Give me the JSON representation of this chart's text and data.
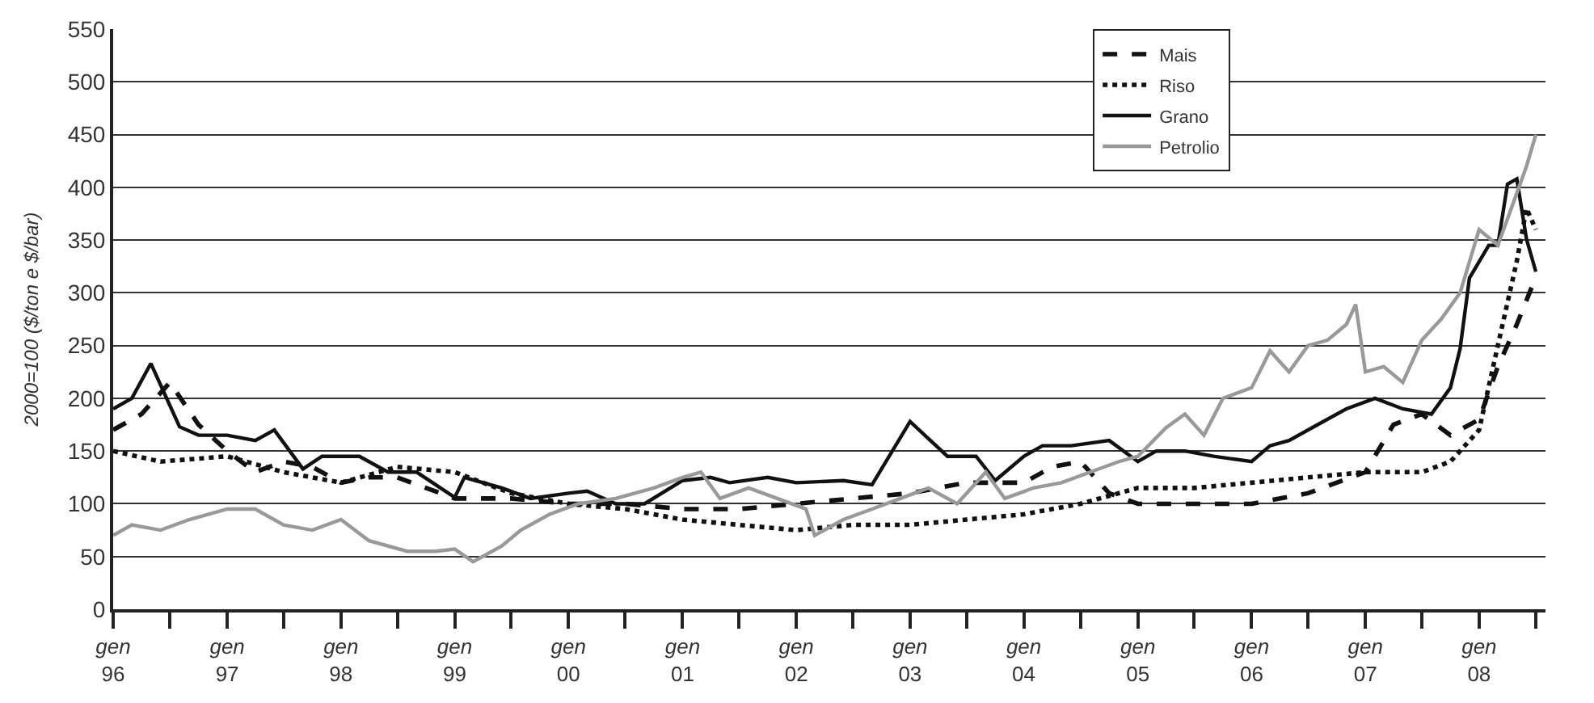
{
  "chart_data": {
    "type": "line",
    "ylabel": "2000=100 ($/ton e $/bar)",
    "xlim": [
      "1996-01",
      "2008-08"
    ],
    "ylim": [
      0,
      550
    ],
    "yticks": [
      0,
      50,
      100,
      150,
      200,
      250,
      300,
      350,
      400,
      450,
      500,
      550
    ],
    "xticks": [
      {
        "value": "1996-01",
        "label": "gen\n96"
      },
      {
        "value": "1996-07",
        "label": null
      },
      {
        "value": "1997-01",
        "label": "gen\n97"
      },
      {
        "value": "1997-07",
        "label": null
      },
      {
        "value": "1998-01",
        "label": "gen\n98"
      },
      {
        "value": "1998-07",
        "label": null
      },
      {
        "value": "1999-01",
        "label": "gen\n99"
      },
      {
        "value": "1999-07",
        "label": null
      },
      {
        "value": "2000-01",
        "label": "gen\n00"
      },
      {
        "value": "2000-07",
        "label": null
      },
      {
        "value": "2001-01",
        "label": "gen\n01"
      },
      {
        "value": "2001-07",
        "label": null
      },
      {
        "value": "2002-01",
        "label": "gen\n02"
      },
      {
        "value": "2002-07",
        "label": null
      },
      {
        "value": "2003-01",
        "label": "gen\n03"
      },
      {
        "value": "2003-07",
        "label": null
      },
      {
        "value": "2004-01",
        "label": "gen\n04"
      },
      {
        "value": "2004-07",
        "label": null
      },
      {
        "value": "2005-01",
        "label": "gen\n05"
      },
      {
        "value": "2005-07",
        "label": null
      },
      {
        "value": "2006-01",
        "label": "gen\n06"
      },
      {
        "value": "2006-07",
        "label": null
      },
      {
        "value": "2007-01",
        "label": "gen\n07"
      },
      {
        "value": "2007-07",
        "label": null
      },
      {
        "value": "2008-01",
        "label": "gen\n08"
      },
      {
        "value": "2008-07",
        "label": null
      }
    ],
    "grid": "y",
    "legend": "top right",
    "marker": "none",
    "series": [
      {
        "name": "Mais",
        "color": "#111111",
        "line_style": "dashed",
        "x": [
          "1996-01",
          "1996-04",
          "1996-07",
          "1996-10",
          "1997-01",
          "1997-04",
          "1997-07",
          "1997-10",
          "1998-01",
          "1998-04",
          "1998-07",
          "1998-10",
          "1999-01",
          "1999-07",
          "2000-01",
          "2000-07",
          "2001-01",
          "2001-07",
          "2002-01",
          "2002-07",
          "2003-01",
          "2003-07",
          "2004-01",
          "2004-04",
          "2004-07",
          "2004-10",
          "2005-01",
          "2005-07",
          "2006-01",
          "2006-07",
          "2007-01",
          "2007-04",
          "2007-07",
          "2007-10",
          "2008-01",
          "2008-03",
          "2008-05",
          "2008-07"
        ],
        "values": [
          170,
          185,
          215,
          175,
          150,
          130,
          140,
          135,
          120,
          125,
          125,
          115,
          105,
          105,
          100,
          100,
          95,
          95,
          100,
          105,
          110,
          120,
          120,
          135,
          140,
          110,
          100,
          100,
          100,
          110,
          130,
          175,
          185,
          165,
          180,
          230,
          270,
          315
        ]
      },
      {
        "name": "Riso",
        "color": "#111111",
        "line_style": "dotted",
        "x": [
          "1996-01",
          "1996-06",
          "1997-01",
          "1997-07",
          "1998-01",
          "1998-07",
          "1999-01",
          "1999-07",
          "2000-01",
          "2000-07",
          "2001-01",
          "2001-07",
          "2002-01",
          "2002-07",
          "2003-01",
          "2003-07",
          "2004-01",
          "2004-07",
          "2005-01",
          "2005-07",
          "2006-01",
          "2006-07",
          "2007-01",
          "2007-07",
          "2007-10",
          "2008-01",
          "2008-03",
          "2008-05",
          "2008-06",
          "2008-07"
        ],
        "values": [
          150,
          140,
          145,
          130,
          120,
          135,
          130,
          110,
          100,
          95,
          85,
          80,
          75,
          80,
          80,
          85,
          90,
          100,
          115,
          115,
          120,
          125,
          130,
          130,
          140,
          170,
          250,
          330,
          380,
          360
        ]
      },
      {
        "name": "Grano",
        "color": "#111111",
        "line_style": "solid",
        "x": [
          "1996-01",
          "1996-03",
          "1996-05",
          "1996-08",
          "1996-10",
          "1997-01",
          "1997-04",
          "1997-06",
          "1997-09",
          "1997-11",
          "1998-03",
          "1998-06",
          "1998-09",
          "1999-01",
          "1999-02",
          "1999-06",
          "1999-09",
          "2000-01",
          "2000-03",
          "2000-06",
          "2000-09",
          "2001-01",
          "2001-04",
          "2001-06",
          "2001-10",
          "2002-01",
          "2002-06",
          "2002-09",
          "2003-01",
          "2003-05",
          "2003-08",
          "2003-10",
          "2004-01",
          "2004-03",
          "2004-06",
          "2004-10",
          "2005-01",
          "2005-03",
          "2005-06",
          "2005-09",
          "2006-01",
          "2006-03",
          "2006-05",
          "2006-08",
          "2006-11",
          "2007-02",
          "2007-05",
          "2007-08",
          "2007-10",
          "2007-11",
          "2007-12",
          "2008-02",
          "2008-03",
          "2008-04",
          "2008-05",
          "2008-06",
          "2008-07"
        ],
        "values": [
          190,
          200,
          233,
          173,
          165,
          165,
          160,
          170,
          133,
          145,
          145,
          130,
          130,
          106,
          125,
          115,
          105,
          110,
          112,
          100,
          100,
          122,
          125,
          120,
          125,
          120,
          122,
          118,
          178,
          145,
          145,
          122,
          145,
          155,
          155,
          160,
          140,
          150,
          150,
          145,
          140,
          155,
          160,
          175,
          190,
          200,
          190,
          185,
          210,
          247,
          314,
          345,
          345,
          403,
          408,
          351,
          320
        ]
      },
      {
        "name": "Petrolio",
        "color": "#999999",
        "line_style": "solid",
        "x": [
          "1996-01",
          "1996-03",
          "1996-06",
          "1996-09",
          "1997-01",
          "1997-04",
          "1997-07",
          "1997-10",
          "1998-01",
          "1998-04",
          "1998-08",
          "1998-11",
          "1999-01",
          "1999-03",
          "1999-06",
          "1999-08",
          "1999-11",
          "2000-02",
          "2000-06",
          "2000-10",
          "2001-01",
          "2001-03",
          "2001-05",
          "2001-08",
          "2001-11",
          "2002-02",
          "2002-03",
          "2002-06",
          "2002-09",
          "2002-12",
          "2003-03",
          "2003-06",
          "2003-09",
          "2003-11",
          "2004-02",
          "2004-05",
          "2004-08",
          "2004-11",
          "2005-01",
          "2005-04",
          "2005-06",
          "2005-08",
          "2005-10",
          "2006-01",
          "2006-03",
          "2006-05",
          "2006-07",
          "2006-09",
          "2006-11",
          "2006-12",
          "2007-01",
          "2007-03",
          "2007-05",
          "2007-07",
          "2007-09",
          "2007-11",
          "2008-01",
          "2008-03",
          "2008-04",
          "2008-06",
          "2008-07"
        ],
        "values": [
          70,
          80,
          75,
          85,
          95,
          95,
          80,
          75,
          85,
          65,
          55,
          55,
          57,
          45,
          60,
          75,
          90,
          100,
          105,
          115,
          125,
          130,
          105,
          115,
          105,
          95,
          70,
          85,
          95,
          105,
          115,
          100,
          130,
          105,
          115,
          120,
          130,
          140,
          145,
          172,
          185,
          165,
          200,
          210,
          245,
          225,
          250,
          255,
          270,
          289,
          225,
          230,
          215,
          255,
          275,
          300,
          360,
          345,
          370,
          420,
          450
        ]
      }
    ]
  }
}
